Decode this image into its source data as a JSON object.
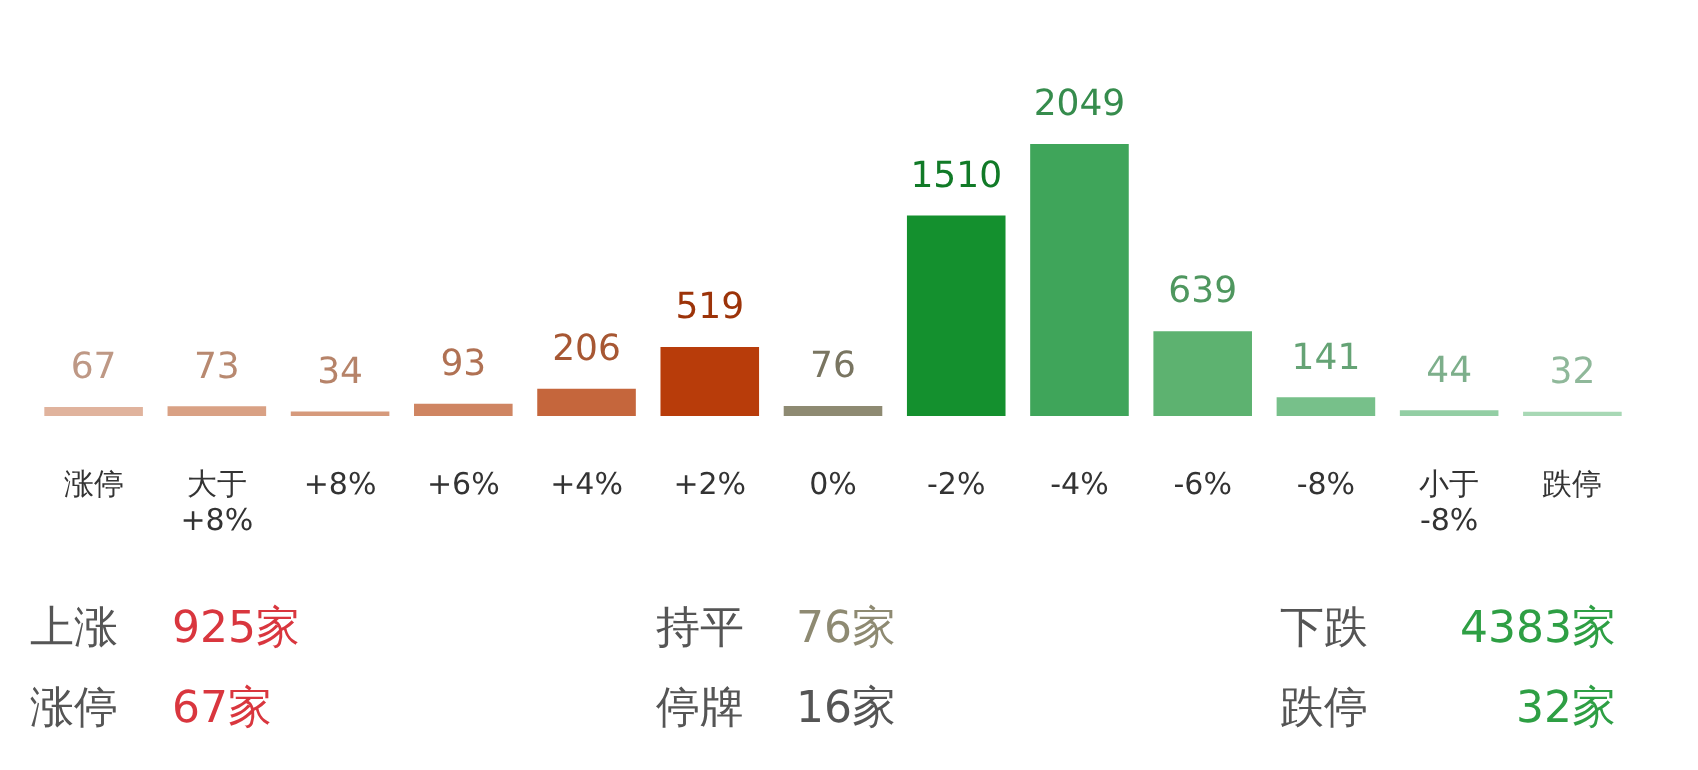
{
  "chart_data": {
    "type": "bar",
    "categories": [
      "涨停",
      "大于\n+8%",
      "+8%",
      "+6%",
      "+4%",
      "+2%",
      "0%",
      "-2%",
      "-4%",
      "-6%",
      "-8%",
      "小于\n-8%",
      "跌停"
    ],
    "values": [
      67,
      73,
      34,
      93,
      206,
      519,
      76,
      1510,
      2049,
      639,
      141,
      44,
      32
    ],
    "colors": [
      "#e0b39d",
      "#d9a184",
      "#d69a7c",
      "#cf8562",
      "#c5663c",
      "#b83c0a",
      "#8e8a72",
      "#14902e",
      "#3fa55a",
      "#5db270",
      "#77c08a",
      "#93cea4",
      "#a8d8b5"
    ],
    "data_labels": true,
    "grid": false,
    "legend": false,
    "tick_labels": "x",
    "annotations": [
      "上涨",
      "925家",
      "持平",
      "76家",
      "下跌",
      "4383家",
      "涨停",
      "67家",
      "停牌",
      "16家",
      "跌停",
      "32家"
    ]
  }
}
